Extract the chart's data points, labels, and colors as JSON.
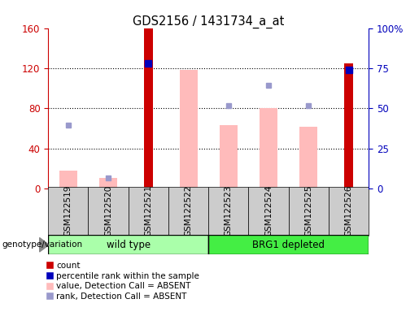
{
  "title": "GDS2156 / 1431734_a_at",
  "samples": [
    "GSM122519",
    "GSM122520",
    "GSM122521",
    "GSM122522",
    "GSM122523",
    "GSM122524",
    "GSM122525",
    "GSM122526"
  ],
  "count_values": [
    null,
    null,
    160,
    null,
    null,
    null,
    null,
    125
  ],
  "percentile_rank_left": [
    null,
    null,
    125,
    null,
    null,
    null,
    null,
    118
  ],
  "absent_value": [
    18,
    11,
    null,
    118,
    63,
    80,
    62,
    null
  ],
  "absent_rank": [
    63,
    11,
    null,
    null,
    83,
    103,
    83,
    null
  ],
  "ylim_left": [
    0,
    160
  ],
  "yticks_left": [
    0,
    40,
    80,
    120,
    160
  ],
  "ytick_labels_right_pos": [
    0,
    40,
    80,
    120,
    160
  ],
  "ytick_labels_right": [
    "0",
    "25",
    "50",
    "75",
    "100%"
  ],
  "group1_label": "wild type",
  "group2_label": "BRG1 depleted",
  "group1_color": "#AAFFAA",
  "group2_color": "#44EE44",
  "bar_color_count": "#CC0000",
  "bar_color_absent_value": "#FFBBBB",
  "dot_color_percentile": "#0000BB",
  "dot_color_absent_rank": "#9999CC",
  "left_axis_color": "#CC0000",
  "right_axis_color": "#0000BB",
  "tick_bg_color": "#CCCCCC",
  "legend_labels": [
    "count",
    "percentile rank within the sample",
    "value, Detection Call = ABSENT",
    "rank, Detection Call = ABSENT"
  ]
}
